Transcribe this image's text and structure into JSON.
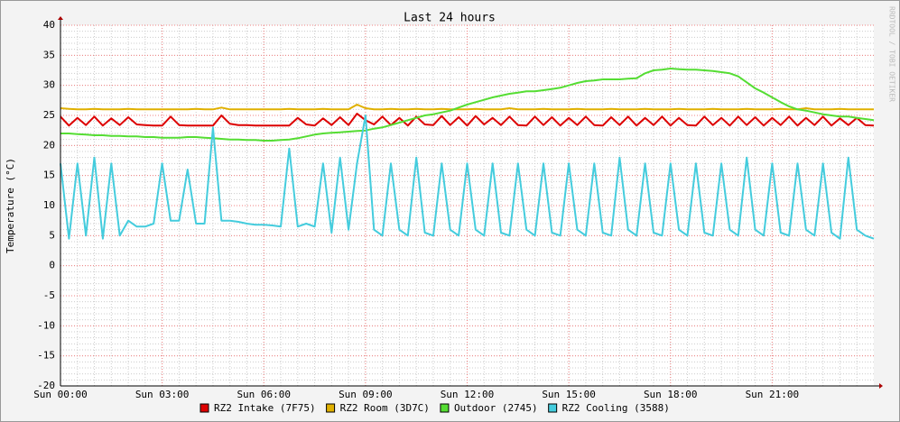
{
  "chart_data": {
    "type": "line",
    "title": "Last 24 hours",
    "y_label": "Temperature (°C)",
    "watermark": "RRDTOOL / TOBI OETIKER",
    "xlim": [
      0,
      24
    ],
    "ylim": [
      -20,
      40
    ],
    "xticks": [
      {
        "value": 0,
        "label": "Sun 00:00"
      },
      {
        "value": 3,
        "label": "Sun 03:00"
      },
      {
        "value": 6,
        "label": "Sun 06:00"
      },
      {
        "value": 9,
        "label": "Sun 09:00"
      },
      {
        "value": 12,
        "label": "Sun 12:00"
      },
      {
        "value": 15,
        "label": "Sun 15:00"
      },
      {
        "value": 18,
        "label": "Sun 18:00"
      },
      {
        "value": 21,
        "label": "Sun 21:00"
      }
    ],
    "yticks": [
      -20,
      -15,
      -10,
      -5,
      0,
      5,
      10,
      15,
      20,
      25,
      30,
      35,
      40
    ],
    "grid": true,
    "x": [
      0,
      0.25,
      0.5,
      0.75,
      1,
      1.25,
      1.5,
      1.75,
      2,
      2.25,
      2.5,
      2.75,
      3,
      3.25,
      3.5,
      3.75,
      4,
      4.25,
      4.5,
      4.75,
      5,
      5.25,
      5.5,
      5.75,
      6,
      6.25,
      6.5,
      6.75,
      7,
      7.25,
      7.5,
      7.75,
      8,
      8.25,
      8.5,
      8.75,
      9,
      9.25,
      9.5,
      9.75,
      10,
      10.25,
      10.5,
      10.75,
      11,
      11.25,
      11.5,
      11.75,
      12,
      12.25,
      12.5,
      12.75,
      13,
      13.25,
      13.5,
      13.75,
      14,
      14.25,
      14.5,
      14.75,
      15,
      15.25,
      15.5,
      15.75,
      16,
      16.25,
      16.5,
      16.75,
      17,
      17.25,
      17.5,
      17.75,
      18,
      18.25,
      18.5,
      18.75,
      19,
      19.25,
      19.5,
      19.75,
      20,
      20.25,
      20.5,
      20.75,
      21,
      21.25,
      21.5,
      21.75,
      22,
      22.25,
      22.5,
      22.75,
      23,
      23.25,
      23.5,
      23.75,
      24
    ],
    "series": [
      {
        "name": "RZ2 Intake (7F75)",
        "color": "#dd0000",
        "values": [
          24.8,
          23.3,
          24.6,
          23.4,
          24.8,
          23.3,
          24.5,
          23.4,
          24.7,
          23.5,
          23.4,
          23.3,
          23.3,
          24.8,
          23.4,
          23.3,
          23.3,
          23.3,
          23.3,
          25,
          23.6,
          23.4,
          23.4,
          23.3,
          23.3,
          23.3,
          23.3,
          23.3,
          24.6,
          23.5,
          23.3,
          24.5,
          23.4,
          24.7,
          23.4,
          25.3,
          24.2,
          23.5,
          24.8,
          23.4,
          24.6,
          23.3,
          24.8,
          23.5,
          23.4,
          24.9,
          23.4,
          24.7,
          23.3,
          24.9,
          23.5,
          24.6,
          23.4,
          24.8,
          23.4,
          23.3,
          24.8,
          23.4,
          24.7,
          23.3,
          24.6,
          23.4,
          24.8,
          23.4,
          23.3,
          24.7,
          23.4,
          24.8,
          23.3,
          24.6,
          23.4,
          24.8,
          23.3,
          24.6,
          23.4,
          23.3,
          24.8,
          23.4,
          24.6,
          23.3,
          24.8,
          23.4,
          24.7,
          23.3,
          24.6,
          23.4,
          24.8,
          23.3,
          24.6,
          23.4,
          24.8,
          23.3,
          24.5,
          23.4,
          24.6,
          23.4,
          23.3
        ]
      },
      {
        "name": "RZ2 Room (3D7C)",
        "color": "#e0b000",
        "values": [
          26.2,
          26.1,
          26,
          26,
          26.1,
          26,
          26,
          26,
          26.1,
          26,
          26,
          26,
          26,
          26,
          26,
          26,
          26.1,
          26,
          26,
          26.3,
          26,
          26,
          26,
          26,
          26,
          26,
          26,
          26.1,
          26,
          26,
          26,
          26.1,
          26,
          26,
          26,
          26.8,
          26.2,
          26,
          26,
          26.1,
          26,
          26,
          26.1,
          26,
          26,
          26.1,
          26,
          26,
          26,
          26.1,
          26,
          26,
          26,
          26.2,
          26,
          26,
          26,
          26.1,
          26,
          26,
          26,
          26.1,
          26,
          26,
          26,
          26.1,
          26,
          26,
          26,
          26.1,
          26,
          26,
          26,
          26.1,
          26,
          26,
          26,
          26.1,
          26,
          26,
          26,
          26.1,
          26,
          26,
          26,
          26.1,
          26,
          26,
          26.2,
          26,
          26,
          26,
          26.1,
          26,
          26,
          26,
          26
        ]
      },
      {
        "name": "Outdoor (2745)",
        "color": "#55dd33",
        "values": [
          22,
          22,
          21.9,
          21.8,
          21.7,
          21.7,
          21.6,
          21.6,
          21.5,
          21.5,
          21.4,
          21.4,
          21.3,
          21.3,
          21.3,
          21.4,
          21.4,
          21.3,
          21.2,
          21.1,
          21,
          21,
          20.9,
          20.9,
          20.8,
          20.8,
          20.9,
          21,
          21.2,
          21.5,
          21.8,
          22,
          22.1,
          22.2,
          22.3,
          22.4,
          22.5,
          22.8,
          23,
          23.4,
          23.8,
          24.2,
          24.6,
          25,
          25.2,
          25.5,
          25.8,
          26.3,
          26.8,
          27.2,
          27.6,
          28,
          28.3,
          28.6,
          28.8,
          29,
          29,
          29.2,
          29.4,
          29.6,
          30,
          30.4,
          30.7,
          30.8,
          31,
          31,
          31,
          31.1,
          31.2,
          32,
          32.5,
          32.6,
          32.8,
          32.7,
          32.6,
          32.6,
          32.5,
          32.4,
          32.2,
          32,
          31.5,
          30.5,
          29.5,
          28.8,
          28,
          27.2,
          26.5,
          26,
          25.8,
          25.5,
          25.2,
          25,
          24.8,
          24.8,
          24.6,
          24.4,
          24.2
        ]
      },
      {
        "name": "RZ2 Cooling (3588)",
        "color": "#44ccdd",
        "values": [
          17,
          4.5,
          17,
          5,
          18,
          4.5,
          17,
          5,
          7.5,
          6.5,
          6.5,
          7,
          17,
          7.5,
          7.5,
          16,
          7,
          7,
          23,
          7.5,
          7.5,
          7.3,
          7,
          6.8,
          6.8,
          6.7,
          6.5,
          19.5,
          6.5,
          7,
          6.5,
          17,
          5.5,
          18,
          6,
          17,
          25,
          6,
          5,
          17,
          6,
          5,
          18,
          5.5,
          5,
          17,
          6,
          5,
          17,
          6,
          5,
          17,
          5.5,
          5,
          17,
          6,
          5,
          17,
          5.5,
          5,
          17,
          6,
          5,
          17,
          5.5,
          5,
          18,
          6,
          5,
          17,
          5.5,
          5,
          17,
          6,
          5,
          17,
          5.5,
          5,
          17,
          6,
          5,
          18,
          6,
          5,
          17,
          5.5,
          5,
          17,
          6,
          5,
          17,
          5.5,
          4.5,
          18,
          6,
          5,
          4.5
        ]
      }
    ]
  }
}
